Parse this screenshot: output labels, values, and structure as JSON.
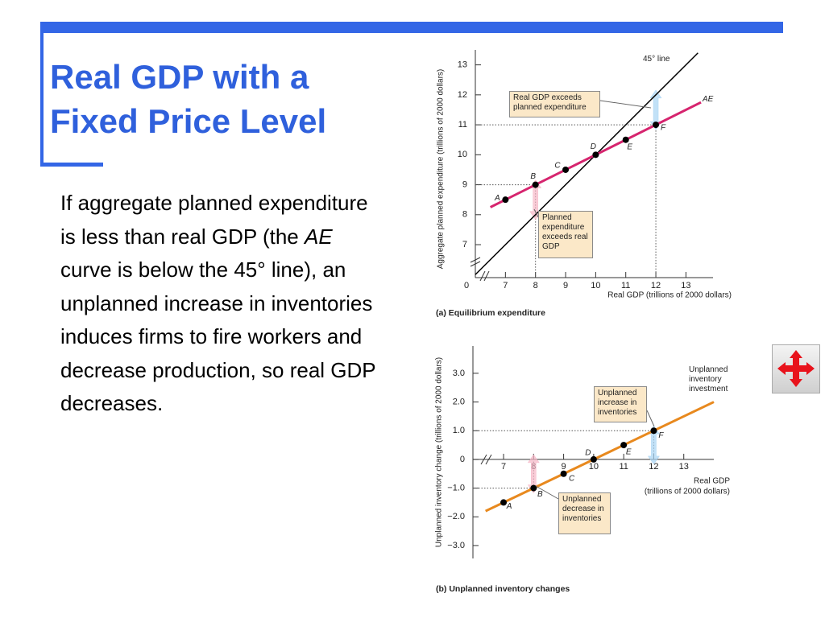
{
  "slide": {
    "title": "Real GDP with a Fixed Price Level",
    "body": [
      "If aggregate planned expenditure is less than real GDP (the ",
      "AE",
      " curve is below the 45° line), an unplanned increase in inventories induces firms to fire workers and decrease production, so real GDP decreases."
    ]
  },
  "chart_data": [
    {
      "type": "line",
      "title": "(a) Equilibrium expenditure",
      "xlabel": "Real GDP (trillions of 2000 dollars)",
      "ylabel": "Aggregate planned expenditure (trillions of 2000 dollars)",
      "origin_label": "0",
      "xlim": [
        6,
        13.9
      ],
      "ylim": [
        5.9,
        13.5
      ],
      "xticks": [
        7,
        8,
        9,
        10,
        11,
        12,
        13
      ],
      "yticks": [
        7,
        8,
        9,
        10,
        11,
        12,
        13
      ],
      "series": [
        {
          "name": "45° line",
          "color": "#000000",
          "x": [
            6,
            13.4
          ],
          "values": [
            6,
            13.4
          ]
        },
        {
          "name": "AE",
          "color": "#d6246e",
          "x": [
            6.5,
            13.5
          ],
          "values": [
            8.25,
            11.75
          ]
        }
      ],
      "points": {
        "labels": [
          "A",
          "B",
          "C",
          "D",
          "E",
          "F"
        ],
        "x": [
          7,
          8,
          9,
          10,
          11,
          12
        ],
        "values": [
          8.5,
          9,
          9.5,
          10,
          10.5,
          11
        ],
        "color": "#000000"
      },
      "annotations": [
        "Real GDP exceeds planned expenditure",
        "Planned expenditure exceeds real GDP"
      ]
    },
    {
      "type": "line",
      "title": "(b) Unplanned inventory changes",
      "xlabel": [
        "Real GDP",
        "(trillions of 2000 dollars)"
      ],
      "ylabel": "Unplanned inventory change (trillions of 2000 dollars)",
      "xlim": [
        5.98,
        14
      ],
      "ylim": [
        -3.45,
        3.95
      ],
      "xticks": [
        7,
        8,
        9,
        10,
        11,
        12,
        13
      ],
      "yticks": [
        {
          "value": 3,
          "label": "3.0"
        },
        {
          "value": 2,
          "label": "2.0"
        },
        {
          "value": 1,
          "label": "1.0"
        },
        0,
        {
          "value": -1,
          "label": "−1.0"
        },
        {
          "value": -2,
          "label": "−2.0"
        },
        {
          "value": -3,
          "label": "−3.0"
        }
      ],
      "series": [
        {
          "name": "Unplanned inventory investment",
          "color": "#e8891e",
          "x": [
            6.4,
            14
          ],
          "values": [
            -1.8,
            2
          ]
        }
      ],
      "points": {
        "labels": [
          "A",
          "B",
          "C",
          "D",
          "E",
          "F"
        ],
        "x": [
          7,
          8,
          9,
          10,
          11,
          12
        ],
        "values": [
          -1.5,
          -1,
          -0.5,
          0,
          0.5,
          1
        ],
        "color": "#000000"
      },
      "annotations": [
        "Unplanned increase in inventories",
        "Unplanned decrease in inventories"
      ]
    }
  ]
}
